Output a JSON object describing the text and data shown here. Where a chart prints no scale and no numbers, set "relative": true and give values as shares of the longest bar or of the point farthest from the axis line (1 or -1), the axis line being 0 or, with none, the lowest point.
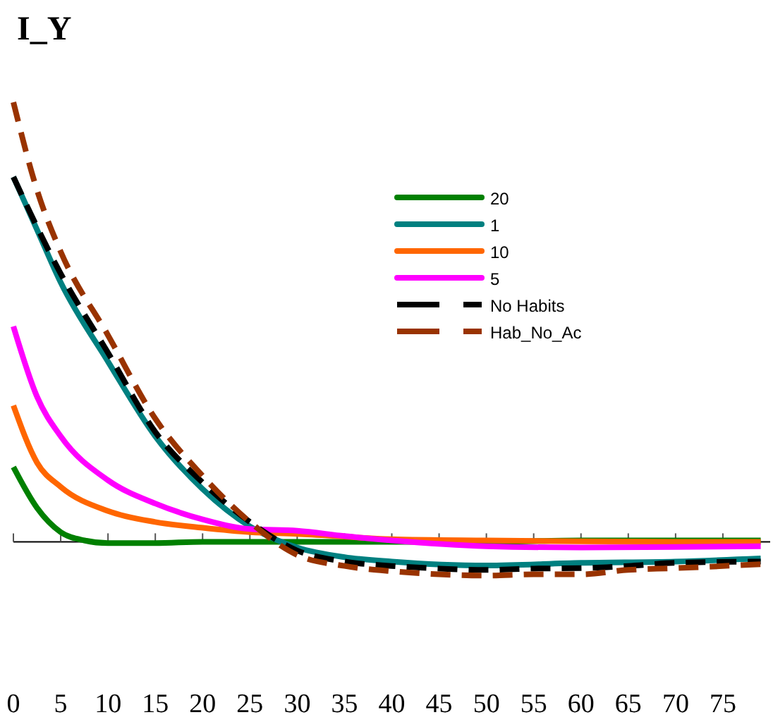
{
  "chart_data": {
    "type": "line",
    "title": "I_Y",
    "relative": true,
    "xlim": [
      0,
      80
    ],
    "xticks": [
      0,
      5,
      10,
      15,
      20,
      25,
      30,
      35,
      40,
      45,
      50,
      55,
      60,
      65,
      70,
      75
    ],
    "legend": "top right",
    "grid": false,
    "marker": "none",
    "series": [
      {
        "name": "20",
        "color": "#008000",
        "line_style": "solid",
        "x": [
          0,
          2.5,
          5,
          7.5,
          10,
          15,
          20,
          30,
          40,
          50,
          60,
          70,
          79
        ],
        "values": [
          0.17,
          0.077,
          0.022,
          0.003,
          -0.003,
          -0.003,
          0,
          0,
          0,
          0,
          0.003,
          0.003,
          0.003
        ]
      },
      {
        "name": "1",
        "color": "#008080",
        "line_style": "solid",
        "x": [
          0,
          2.5,
          5,
          10,
          15,
          20,
          25,
          30,
          35,
          40,
          50,
          60,
          70,
          79
        ],
        "values": [
          0.83,
          0.71,
          0.59,
          0.41,
          0.24,
          0.12,
          0.035,
          -0.013,
          -0.035,
          -0.045,
          -0.054,
          -0.048,
          -0.045,
          -0.038
        ]
      },
      {
        "name": "10",
        "color": "#ff6600",
        "line_style": "solid",
        "x": [
          0,
          2.5,
          5,
          10,
          15,
          20,
          25,
          30,
          40,
          50,
          60,
          70,
          79
        ],
        "values": [
          0.31,
          0.18,
          0.125,
          0.07,
          0.045,
          0.032,
          0.022,
          0.018,
          0.006,
          0.003,
          0.001,
          0,
          0
        ]
      },
      {
        "name": "5",
        "color": "#ff00ff",
        "line_style": "solid",
        "x": [
          0,
          2.5,
          5,
          10,
          15,
          20,
          25,
          30,
          35,
          40,
          50,
          60,
          70,
          79
        ],
        "values": [
          0.49,
          0.33,
          0.24,
          0.14,
          0.087,
          0.051,
          0.029,
          0.025,
          0.013,
          0.003,
          -0.01,
          -0.013,
          -0.012,
          -0.01
        ]
      },
      {
        "name": "No Habits",
        "color": "#000000",
        "line_style": "dashed",
        "x": [
          0,
          5,
          10,
          15,
          20,
          25,
          30,
          35,
          40,
          45,
          50,
          55,
          60,
          65,
          70,
          79
        ],
        "values": [
          0.83,
          0.61,
          0.43,
          0.25,
          0.135,
          0.045,
          -0.02,
          -0.045,
          -0.055,
          -0.061,
          -0.064,
          -0.061,
          -0.06,
          -0.055,
          -0.048,
          -0.045
        ]
      },
      {
        "name": "Hab_No_Ac",
        "color": "#993300",
        "line_style": "dashed",
        "x": [
          0,
          2.5,
          5,
          10,
          15,
          20,
          25,
          30,
          35,
          40,
          45,
          50,
          55,
          60,
          65,
          70,
          79
        ],
        "values": [
          1,
          0.8,
          0.66,
          0.47,
          0.28,
          0.15,
          0.045,
          -0.03,
          -0.055,
          -0.067,
          -0.074,
          -0.077,
          -0.074,
          -0.074,
          -0.064,
          -0.06,
          -0.051
        ]
      }
    ]
  }
}
